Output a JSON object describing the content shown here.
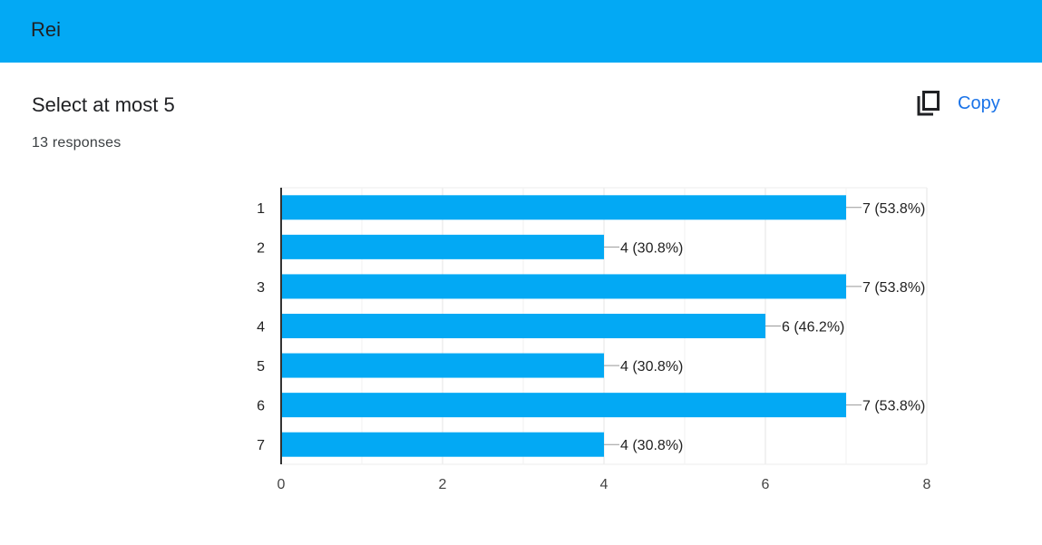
{
  "header": {
    "title": "Rei"
  },
  "question": {
    "title": "Select at most 5",
    "response_count": "13 responses"
  },
  "toolbar": {
    "copy_label": "Copy",
    "copy_icon": "copy-icon"
  },
  "colors": {
    "header_bg": "#03a9f4",
    "bar": "#03a9f4",
    "link": "#1a73e8"
  },
  "chart_data": {
    "type": "bar",
    "orientation": "horizontal",
    "categories": [
      "1",
      "2",
      "3",
      "4",
      "5",
      "6",
      "7"
    ],
    "values": [
      7,
      4,
      7,
      6,
      4,
      7,
      4
    ],
    "data_labels": [
      "7 (53.8%)",
      "4 (30.8%)",
      "7 (53.8%)",
      "6 (46.2%)",
      "4 (30.8%)",
      "7 (53.8%)",
      "4 (30.8%)"
    ],
    "xlim": [
      0,
      8
    ],
    "x_ticks": [
      "0",
      "2",
      "4",
      "6",
      "8"
    ],
    "grid": true
  }
}
